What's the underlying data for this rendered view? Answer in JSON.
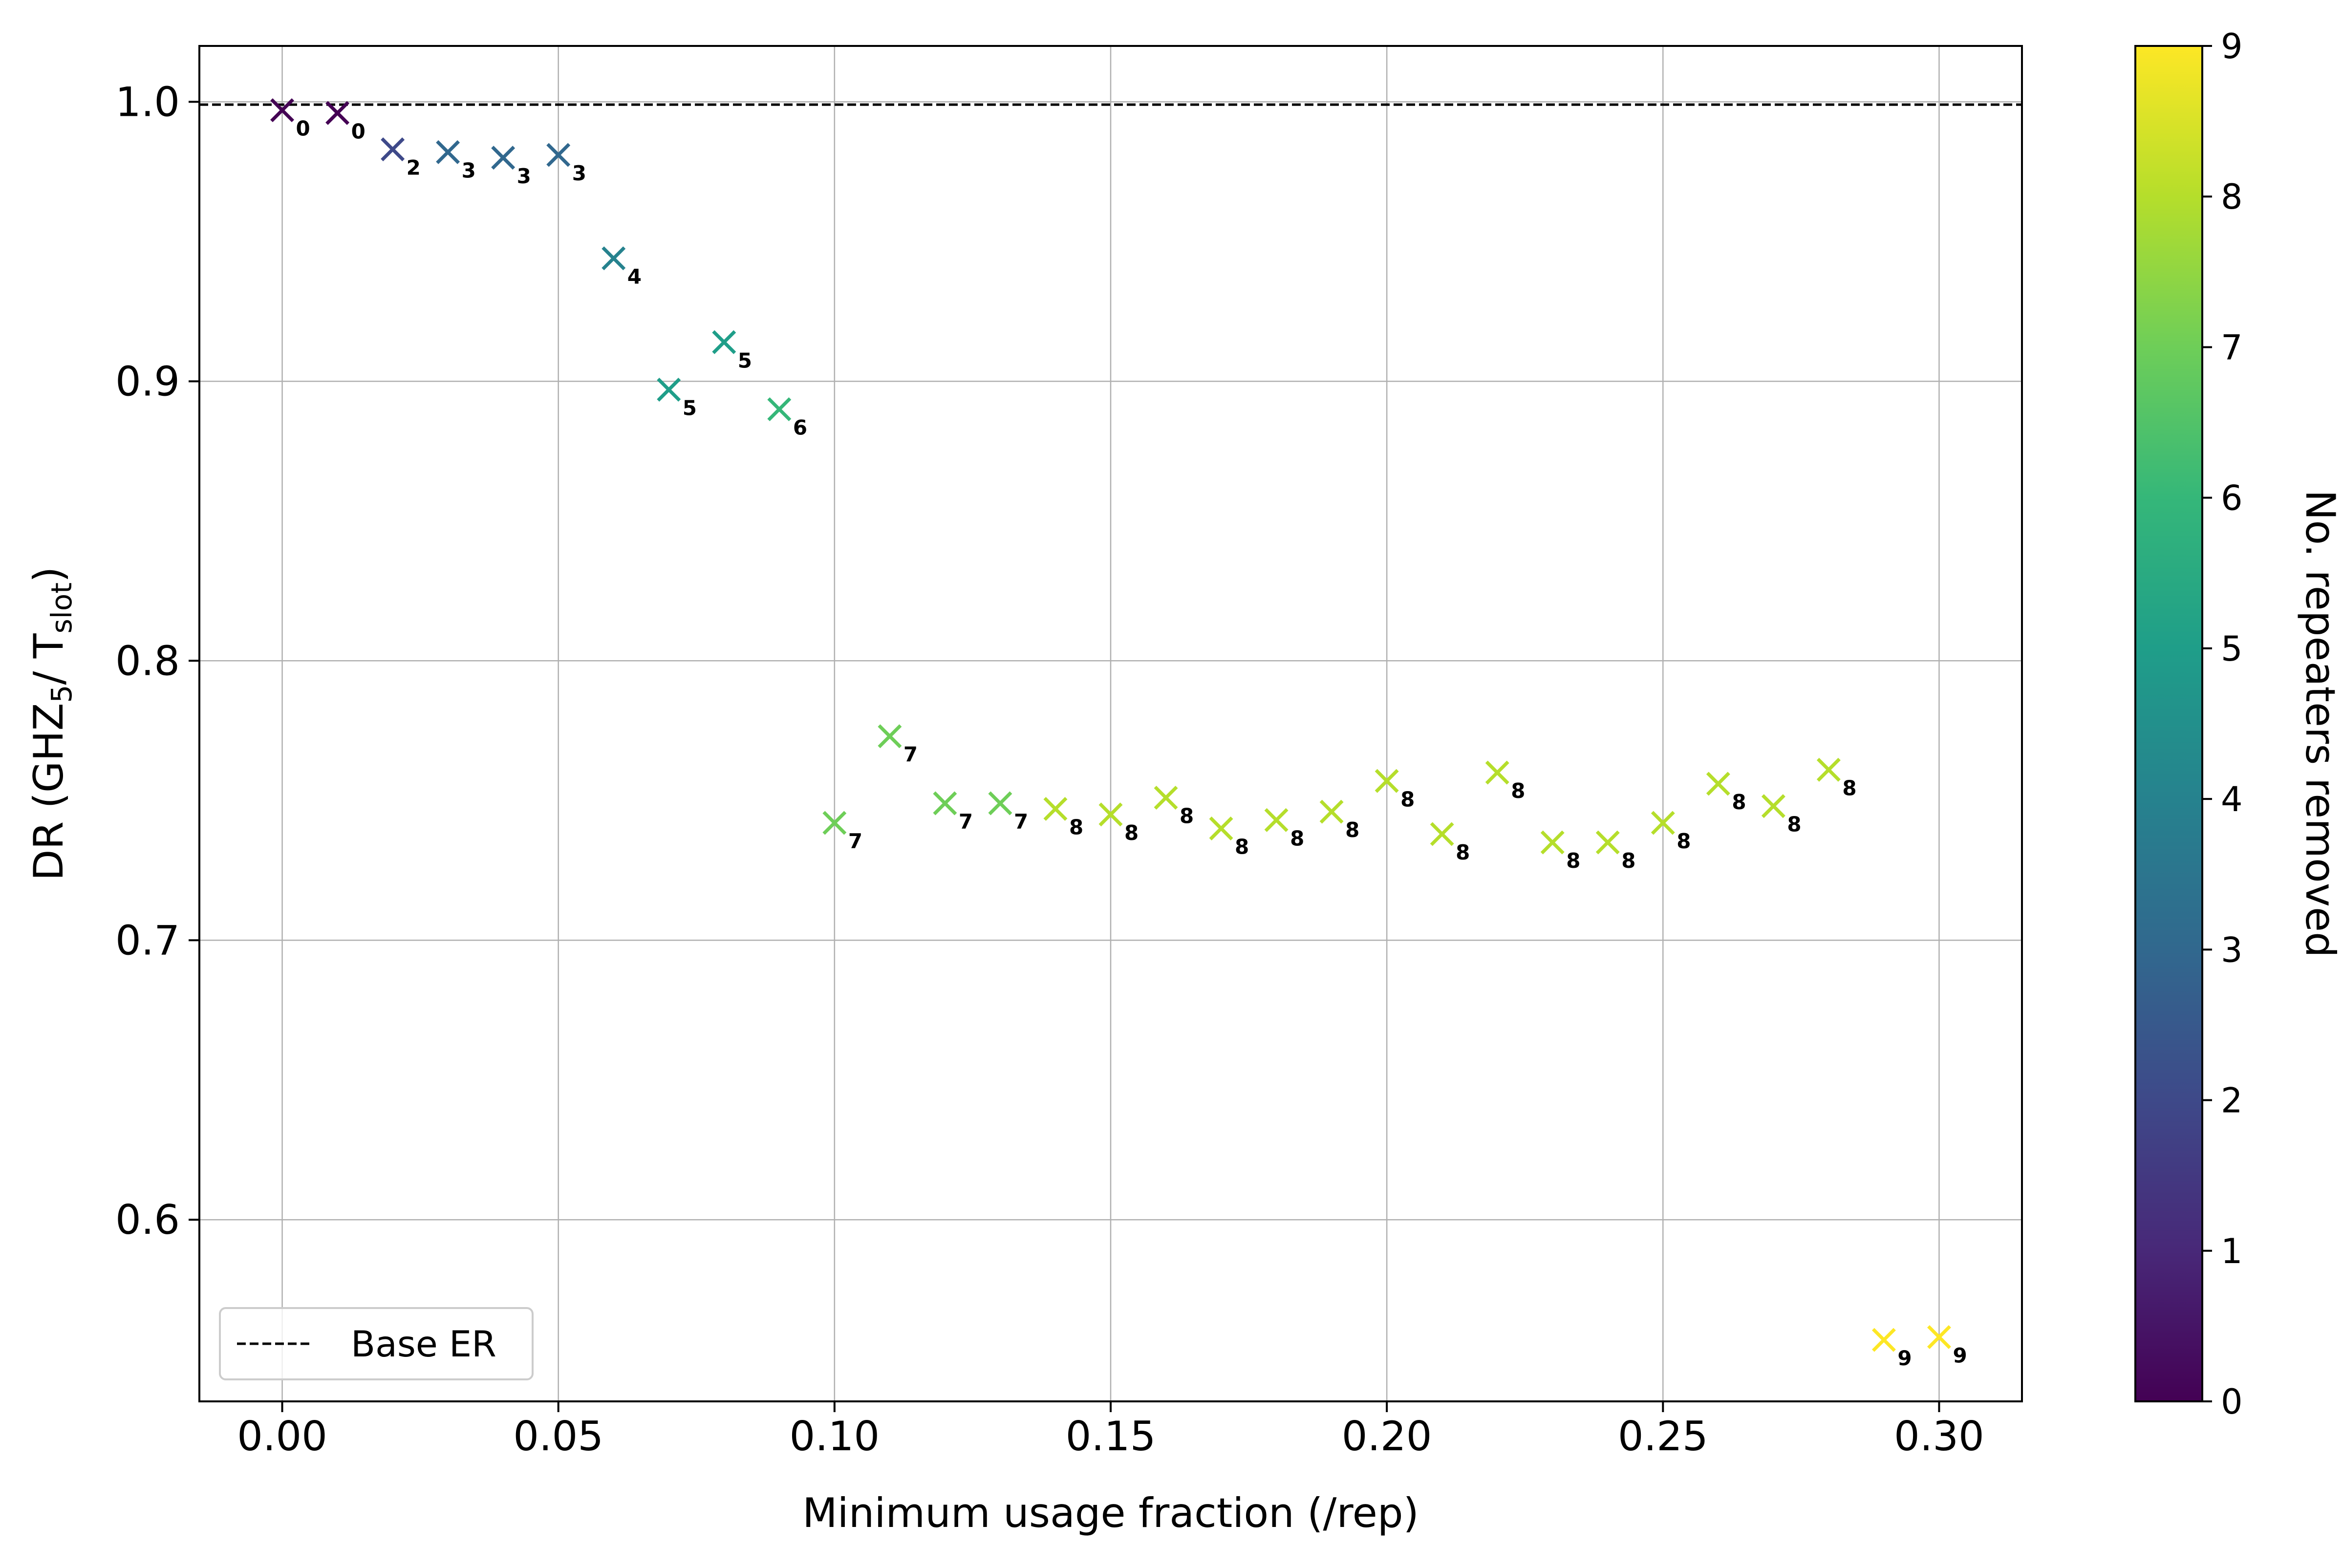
{
  "chart_data": {
    "type": "scatter",
    "title": "",
    "xlabel": "Minimum usage fraction (/rep)",
    "ylabel": {
      "prefix": "DR (GHZ",
      "sub1": "5",
      "middle": "/ T",
      "sub2": "slot",
      "suffix": ")"
    },
    "xlim": [
      -0.015,
      0.315
    ],
    "ylim": [
      0.535,
      1.02
    ],
    "grid": true,
    "x_ticks": [
      0.0,
      0.05,
      0.1,
      0.15,
      0.2,
      0.25,
      0.3
    ],
    "x_tick_labels": [
      "0.00",
      "0.05",
      "0.10",
      "0.15",
      "0.20",
      "0.25",
      "0.30"
    ],
    "y_ticks": [
      0.6,
      0.7,
      0.8,
      0.9,
      1.0
    ],
    "y_tick_labels": [
      "0.6",
      "0.7",
      "0.8",
      "0.9",
      "1.0"
    ],
    "baseline": {
      "y": 0.999,
      "style": "dashed",
      "label": "Base ER"
    },
    "legend": {
      "position": "lower-left",
      "entries": [
        "Base ER"
      ]
    },
    "colorbar": {
      "label": "No. repeaters removed",
      "min": 0,
      "max": 9,
      "colormap": "viridis",
      "ticks": [
        0,
        1,
        2,
        3,
        4,
        5,
        6,
        7,
        8,
        9
      ],
      "tick_labels": [
        "0",
        "1",
        "2",
        "3",
        "4",
        "5",
        "6",
        "7",
        "8",
        "9"
      ]
    },
    "marker": "x",
    "points": [
      {
        "x": 0.0,
        "y": 0.997,
        "removed": 0
      },
      {
        "x": 0.01,
        "y": 0.996,
        "removed": 0
      },
      {
        "x": 0.02,
        "y": 0.983,
        "removed": 2
      },
      {
        "x": 0.03,
        "y": 0.982,
        "removed": 3
      },
      {
        "x": 0.04,
        "y": 0.98,
        "removed": 3
      },
      {
        "x": 0.05,
        "y": 0.981,
        "removed": 3
      },
      {
        "x": 0.06,
        "y": 0.944,
        "removed": 4
      },
      {
        "x": 0.07,
        "y": 0.897,
        "removed": 5
      },
      {
        "x": 0.08,
        "y": 0.914,
        "removed": 5
      },
      {
        "x": 0.09,
        "y": 0.89,
        "removed": 6
      },
      {
        "x": 0.1,
        "y": 0.742,
        "removed": 7
      },
      {
        "x": 0.11,
        "y": 0.773,
        "removed": 7
      },
      {
        "x": 0.12,
        "y": 0.749,
        "removed": 7
      },
      {
        "x": 0.13,
        "y": 0.749,
        "removed": 7
      },
      {
        "x": 0.14,
        "y": 0.747,
        "removed": 8
      },
      {
        "x": 0.15,
        "y": 0.745,
        "removed": 8
      },
      {
        "x": 0.16,
        "y": 0.751,
        "removed": 8
      },
      {
        "x": 0.17,
        "y": 0.74,
        "removed": 8
      },
      {
        "x": 0.18,
        "y": 0.743,
        "removed": 8
      },
      {
        "x": 0.19,
        "y": 0.746,
        "removed": 8
      },
      {
        "x": 0.2,
        "y": 0.757,
        "removed": 8
      },
      {
        "x": 0.21,
        "y": 0.738,
        "removed": 8
      },
      {
        "x": 0.22,
        "y": 0.76,
        "removed": 8
      },
      {
        "x": 0.23,
        "y": 0.735,
        "removed": 8
      },
      {
        "x": 0.24,
        "y": 0.735,
        "removed": 8
      },
      {
        "x": 0.25,
        "y": 0.742,
        "removed": 8
      },
      {
        "x": 0.26,
        "y": 0.756,
        "removed": 8
      },
      {
        "x": 0.27,
        "y": 0.748,
        "removed": 8
      },
      {
        "x": 0.28,
        "y": 0.761,
        "removed": 8
      },
      {
        "x": 0.29,
        "y": 0.557,
        "removed": 9
      },
      {
        "x": 0.3,
        "y": 0.558,
        "removed": 9
      }
    ]
  }
}
